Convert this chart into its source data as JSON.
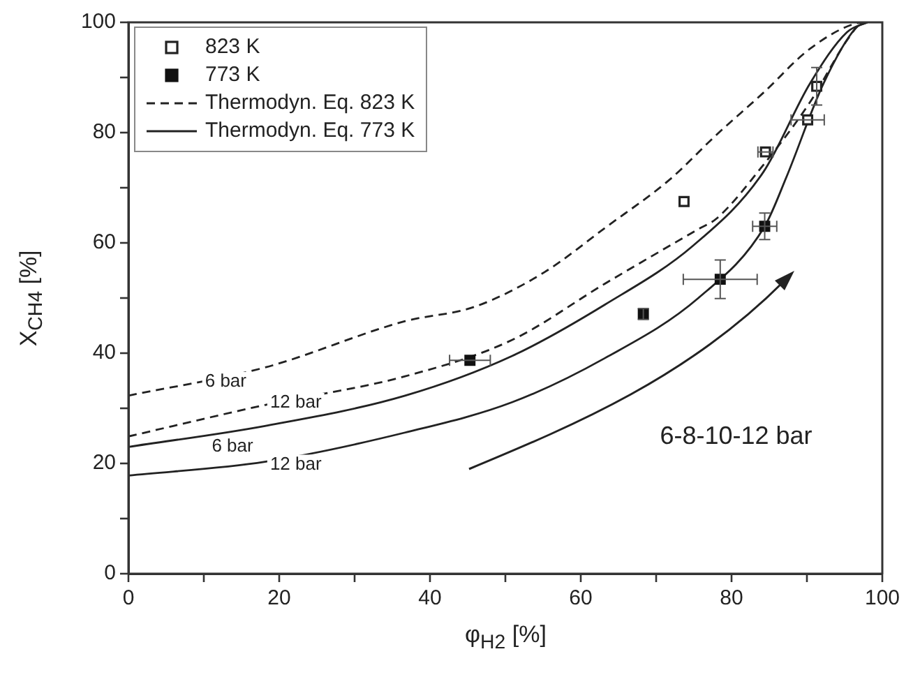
{
  "chart_data": {
    "type": "scatter",
    "xlabel": "φ$_{H2}$ [%]",
    "ylabel": "X$_{CH4}$ [%]",
    "xlim": [
      0,
      100
    ],
    "ylim": [
      0,
      100
    ],
    "xticks": [
      0,
      {
        "value": 10,
        "label": null
      },
      20,
      {
        "value": 30,
        "label": null
      },
      40,
      {
        "value": 50,
        "label": null
      },
      60,
      {
        "value": 70,
        "label": null
      },
      80,
      {
        "value": 90,
        "label": null
      },
      100
    ],
    "yticks": [
      0,
      {
        "value": 10,
        "label": null
      },
      20,
      {
        "value": 30,
        "label": null
      },
      40,
      {
        "value": 50,
        "label": null
      },
      60,
      {
        "value": 70,
        "label": null
      },
      80,
      {
        "value": 90,
        "label": null
      },
      100
    ],
    "grid": false,
    "legend": "top left",
    "series": [
      {
        "name": "823 K",
        "type": "scatter",
        "marker": "square",
        "color": "#222222",
        "x": [
          73.7,
          84.5,
          90.1,
          91.3
        ],
        "values": [
          67.5,
          76.5,
          82.3,
          88.4
        ],
        "errors": [
          null,
          null,
          null,
          3.4
        ],
        "xerrors": [
          null,
          1,
          2.2,
          null
        ]
      },
      {
        "name": "773 K",
        "type": "scatter",
        "marker": "square",
        "color": "#111111",
        "x": [
          45.3,
          68.3,
          78.5,
          84.4
        ],
        "values": [
          38.7,
          47.1,
          53.4,
          63.0
        ],
        "errors": [
          null,
          1,
          3.5,
          2.4
        ],
        "xerrors": [
          2.7,
          null,
          4.9,
          1.6
        ]
      },
      {
        "name": "Thermodyn. Eq. 823 K",
        "type": "line",
        "line_style": "dashed",
        "marker": "none",
        "color": "#222222",
        "x": [
          0,
          18.1,
          36.7,
          45.9,
          55.2,
          63.2,
          71.9,
          78,
          84.2,
          90.4,
          96.5,
          98
        ],
        "values": [
          32.3,
          37.4,
          45.8,
          48.4,
          54.7,
          62.7,
          71.6,
          79.6,
          87.2,
          95.2,
          99.8,
          100
        ]
      },
      {
        "type": "line",
        "line_style": "dashed",
        "marker": "none",
        "color": "#222222",
        "x": [
          0,
          18.1,
          36.7,
          50.9,
          63.2,
          75.6,
          78,
          84.2,
          90.4,
          95.3,
          97.2,
          98
        ],
        "values": [
          24.9,
          30.6,
          35.8,
          42.4,
          52.6,
          62.5,
          64.4,
          74.1,
          85.5,
          96.7,
          99.8,
          100
        ]
      },
      {
        "name": "Thermodyn. Eq. 773 K",
        "type": "line",
        "line_style": "solid",
        "marker": "none",
        "color": "#222222",
        "x": [
          0,
          18.1,
          36.7,
          50.9,
          63.2,
          74.9,
          84.2,
          90.4,
          95.3,
          98
        ],
        "values": [
          23.0,
          26.8,
          32.3,
          39.5,
          48.8,
          59.5,
          72.8,
          88.9,
          98.2,
          100
        ]
      },
      {
        "type": "line",
        "line_style": "solid",
        "marker": "none",
        "color": "#222222",
        "x": [
          0,
          18.1,
          36.7,
          50.9,
          63.2,
          75.6,
          84.4,
          87.3,
          92.2,
          96.5,
          98
        ],
        "values": [
          17.8,
          20.3,
          25.6,
          31.1,
          39.1,
          50.0,
          63.0,
          72.0,
          88.9,
          99,
          100
        ]
      }
    ],
    "annotations": [
      {
        "text": "6 bar",
        "x": 12.9,
        "y": 34.8
      },
      {
        "text": "12 bar",
        "x": 22.2,
        "y": 31
      },
      {
        "text": "6 bar",
        "x": 13.8,
        "y": 23
      },
      {
        "text": "12 bar",
        "x": 22.2,
        "y": 19.8
      },
      "6-8-10-12 bar"
    ]
  }
}
